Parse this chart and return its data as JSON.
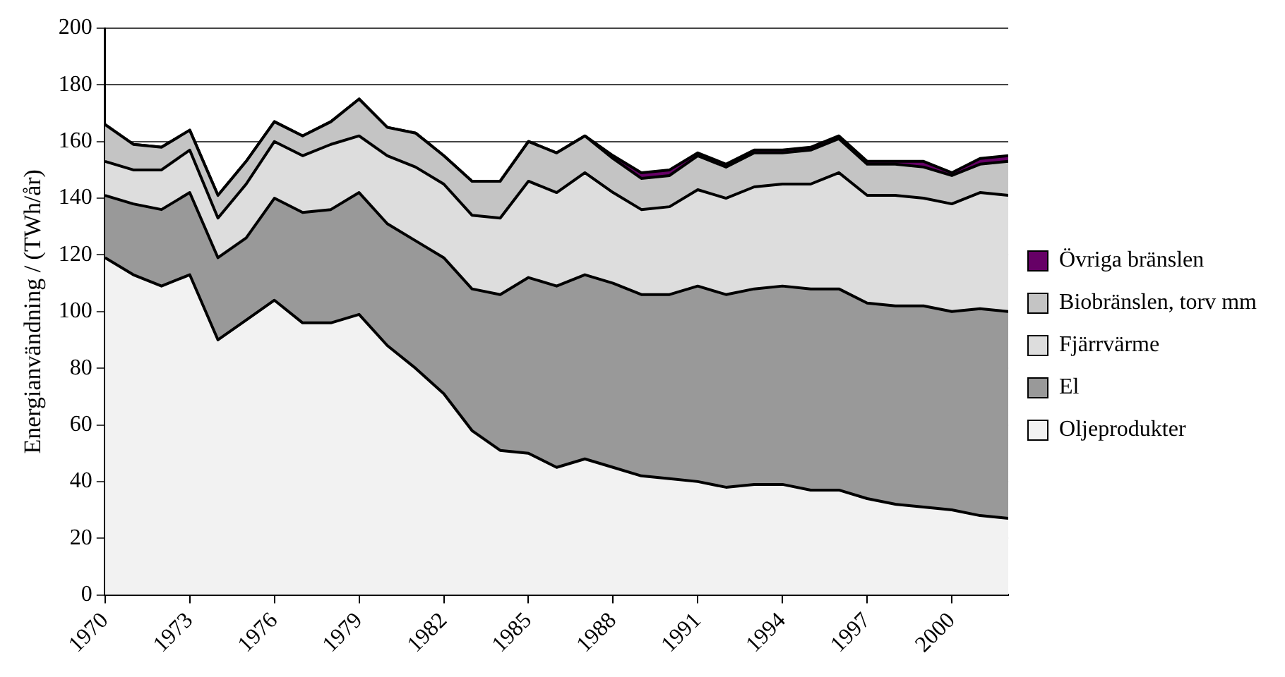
{
  "chart_data": {
    "type": "area",
    "stacked": true,
    "ylabel": "Energianvändning / (TWh/år)",
    "x": [
      1970,
      1971,
      1972,
      1973,
      1974,
      1975,
      1976,
      1977,
      1978,
      1979,
      1980,
      1981,
      1982,
      1983,
      1984,
      1985,
      1986,
      1987,
      1988,
      1989,
      1990,
      1991,
      1992,
      1993,
      1994,
      1995,
      1996,
      1997,
      1998,
      1999,
      2000,
      2001,
      2002
    ],
    "xlim": [
      1970,
      2002
    ],
    "xticks": [
      1970,
      1973,
      1976,
      1979,
      1982,
      1985,
      1988,
      1991,
      1994,
      1997,
      2000
    ],
    "ylim": [
      0,
      200
    ],
    "yticks": [
      0,
      20,
      40,
      60,
      80,
      100,
      120,
      140,
      160,
      180,
      200
    ],
    "grid": "y",
    "legend": "right",
    "series": [
      {
        "name": "Oljeprodukter",
        "color": "#f2f2f2",
        "values": [
          119,
          113,
          109,
          113,
          90,
          97,
          104,
          96,
          96,
          99,
          88,
          80,
          71,
          58,
          51,
          50,
          45,
          48,
          45,
          42,
          41,
          40,
          38,
          39,
          39,
          37,
          37,
          34,
          32,
          31,
          30,
          28,
          27
        ]
      },
      {
        "name": "El",
        "color": "#999999",
        "values": [
          22,
          25,
          27,
          29,
          29,
          29,
          36,
          39,
          40,
          43,
          43,
          45,
          48,
          50,
          55,
          62,
          64,
          65,
          65,
          64,
          65,
          69,
          68,
          69,
          70,
          71,
          71,
          69,
          70,
          71,
          70,
          73,
          73
        ]
      },
      {
        "name": "Fjärrvärme",
        "color": "#dddddd",
        "values": [
          12,
          12,
          14,
          15,
          14,
          19,
          20,
          20,
          23,
          20,
          24,
          26,
          26,
          26,
          27,
          34,
          33,
          36,
          32,
          30,
          31,
          34,
          34,
          36,
          36,
          37,
          41,
          38,
          39,
          38,
          38,
          41,
          41
        ]
      },
      {
        "name": "Biobränslen, torv mm",
        "color": "#c4c4c4",
        "values": [
          13,
          9,
          8,
          7,
          8,
          8,
          7,
          7,
          8,
          13,
          10,
          12,
          10,
          12,
          13,
          14,
          14,
          13,
          12,
          11,
          11,
          12,
          11,
          12,
          11,
          12,
          12,
          11,
          11,
          11,
          10,
          10,
          12
        ]
      },
      {
        "name": "Övriga bränslen",
        "color": "#660066",
        "values": [
          0,
          0,
          0,
          0,
          0,
          0,
          0,
          0,
          0,
          0,
          0,
          0,
          0,
          0,
          0,
          0,
          0,
          0,
          1,
          2,
          2,
          1,
          1,
          1,
          1,
          1,
          1,
          1,
          1,
          2,
          1,
          2,
          2
        ]
      }
    ]
  }
}
